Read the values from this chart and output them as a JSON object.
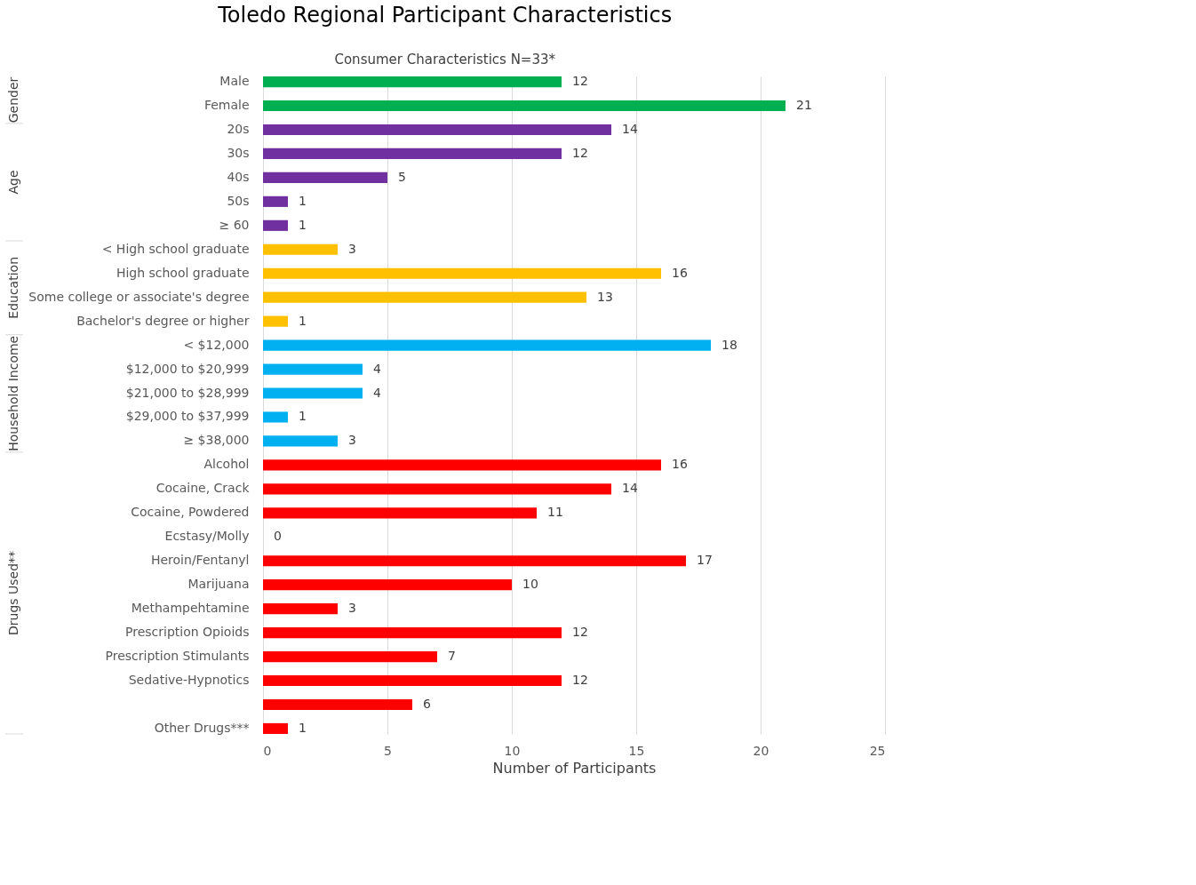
{
  "chart_data": {
    "type": "bar",
    "orientation": "horizontal",
    "title": "Toledo Regional Participant Characteristics",
    "subtitle": "Consumer  Characteristics N=33*",
    "xlabel": "Number  of Participants",
    "categories": [
      "Male",
      "Female",
      "20s",
      "30s",
      "40s",
      "50s",
      "≥ 60",
      "< High school graduate",
      "High school graduate",
      "Some college or associate's degree",
      "Bachelor's degree or higher",
      "< $12,000",
      "$12,000 to $20,999",
      "$21,000 to $28,999",
      "$29,000 to $37,999",
      "≥ $38,000",
      "Alcohol",
      "Cocaine, Crack",
      "Cocaine, Powdered",
      "Ecstasy/Molly",
      "Heroin/Fentanyl",
      "Marijuana",
      "Methampehtamine",
      "Prescription Opioids",
      "Prescription Stimulants",
      "Sedative-Hypnotics",
      null,
      "Other Drugs***"
    ],
    "values": [
      12,
      21,
      14,
      12,
      5,
      1,
      1,
      3,
      16,
      13,
      1,
      18,
      4,
      4,
      1,
      3,
      16,
      14,
      11,
      0,
      17,
      10,
      3,
      12,
      7,
      12,
      6,
      1
    ],
    "colors": [
      "#00b050",
      "#00b050",
      "#7030a0",
      "#7030a0",
      "#7030a0",
      "#7030a0",
      "#7030a0",
      "#ffc000",
      "#ffc000",
      "#ffc000",
      "#ffc000",
      "#00b0f0",
      "#00b0f0",
      "#00b0f0",
      "#00b0f0",
      "#00b0f0",
      "#ff0000",
      "#ff0000",
      "#ff0000",
      "#ff0000",
      "#ff0000",
      "#ff0000",
      "#ff0000",
      "#ff0000",
      "#ff0000",
      "#ff0000",
      "#ff0000",
      "#ff0000"
    ],
    "annotations": [
      "Gender",
      "Age",
      "Education",
      "Household Income",
      "Drugs Used**"
    ],
    "xlim": [
      0,
      25
    ],
    "xticks": [
      0,
      5,
      10,
      15,
      20,
      25
    ],
    "grid": "x",
    "data_labels": true
  }
}
